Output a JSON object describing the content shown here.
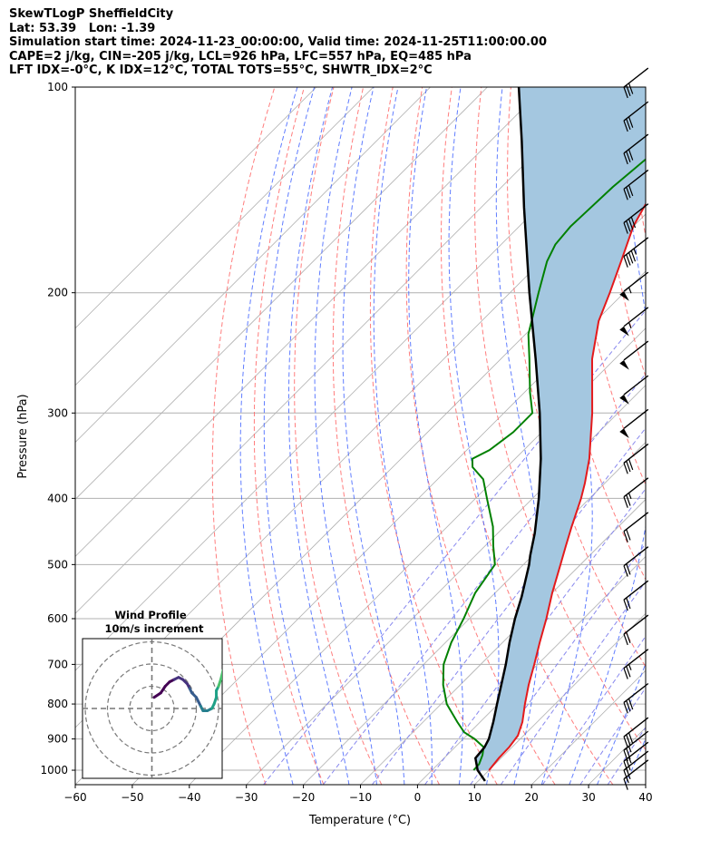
{
  "header": {
    "title": "SkewTLogP SheffieldCity",
    "location": "Lat: 53.39   Lon: -1.39",
    "times": "Simulation start time: 2024-11-23_00:00:00, Valid time: 2024-11-25T11:00:00.00",
    "params": "CAPE=2 j/kg, CIN=-205 j/kg, LCL=926 hPa, LFC=557 hPa, EQ=485 hPa",
    "indices": "LFT IDX=-0°C, K IDX=12°C, TOTAL TOTS=55°C, SHWTR_IDX=2°C"
  },
  "chart_data": {
    "type": "skew-t log-p",
    "xlabel": "Temperature (°C)",
    "ylabel": "Pressure (hPa)",
    "xlim": [
      -60,
      40
    ],
    "ylim": [
      1050,
      100
    ],
    "y_scale": "log",
    "x_ticks": [
      -60,
      -50,
      -40,
      -30,
      -20,
      -10,
      0,
      10,
      20,
      30,
      40
    ],
    "y_ticks": [
      100,
      200,
      300,
      400,
      500,
      600,
      700,
      800,
      900,
      1000
    ],
    "grid": true,
    "colors": {
      "temperature": "#e41a1c",
      "dewpoint": "#008000",
      "parcel": "#000000",
      "shading": "#a4c7e0",
      "dry_adiabats": "#ff6666",
      "moist_adiabats": "#4466ff",
      "mixing_ratio": "#8888ee",
      "isotherms": "#b0b0b0"
    },
    "temperature_profile": [
      [
        1000,
        10.0
      ],
      [
        960,
        9.6
      ],
      [
        925,
        9.5
      ],
      [
        890,
        9.0
      ],
      [
        850,
        7.4
      ],
      [
        800,
        4.7
      ],
      [
        750,
        2.0
      ],
      [
        700,
        -0.6
      ],
      [
        650,
        -3.5
      ],
      [
        600,
        -6.5
      ],
      [
        550,
        -10.0
      ],
      [
        500,
        -13.5
      ],
      [
        470,
        -15.8
      ],
      [
        440,
        -18.2
      ],
      [
        420,
        -19.8
      ],
      [
        400,
        -21.5
      ],
      [
        380,
        -23.5
      ],
      [
        350,
        -27.0
      ],
      [
        300,
        -34.5
      ],
      [
        250,
        -44.0
      ],
      [
        220,
        -49.5
      ],
      [
        200,
        -52.5
      ],
      [
        180,
        -56.0
      ],
      [
        160,
        -60.0
      ],
      [
        150,
        -61.5
      ],
      [
        130,
        -64.5
      ],
      [
        120,
        -66.5
      ],
      [
        110,
        -68.5
      ],
      [
        100,
        -70.5
      ]
    ],
    "dewpoint_profile": [
      [
        1000,
        7.3
      ],
      [
        980,
        7.2
      ],
      [
        950,
        6.2
      ],
      [
        925,
        5.0
      ],
      [
        900,
        2.0
      ],
      [
        880,
        -1.0
      ],
      [
        850,
        -4.0
      ],
      [
        800,
        -9.0
      ],
      [
        750,
        -13.0
      ],
      [
        700,
        -16.5
      ],
      [
        650,
        -19.0
      ],
      [
        600,
        -21.0
      ],
      [
        550,
        -23.5
      ],
      [
        500,
        -25.0
      ],
      [
        470,
        -28.5
      ],
      [
        440,
        -32.0
      ],
      [
        400,
        -38.0
      ],
      [
        375,
        -42.0
      ],
      [
        360,
        -46.0
      ],
      [
        350,
        -47.5
      ],
      [
        340,
        -46.0
      ],
      [
        320,
        -45.0
      ],
      [
        300,
        -45.0
      ],
      [
        280,
        -49.0
      ],
      [
        250,
        -55.0
      ],
      [
        230,
        -59.5
      ],
      [
        200,
        -65.0
      ],
      [
        180,
        -69.0
      ],
      [
        170,
        -70.5
      ],
      [
        160,
        -71.0
      ],
      [
        140,
        -70.5
      ],
      [
        120,
        -69.0
      ],
      [
        100,
        -68.0
      ]
    ],
    "parcel_profile": [
      [
        1037,
        11.2
      ],
      [
        1000,
        8.0
      ],
      [
        960,
        5.5
      ],
      [
        926,
        5.2
      ],
      [
        900,
        4.5
      ],
      [
        850,
        2.3
      ],
      [
        800,
        -0.2
      ],
      [
        750,
        -2.8
      ],
      [
        700,
        -5.6
      ],
      [
        650,
        -8.8
      ],
      [
        600,
        -12.0
      ],
      [
        557,
        -14.7
      ],
      [
        500,
        -19.0
      ],
      [
        485,
        -20.4
      ],
      [
        450,
        -23.5
      ],
      [
        400,
        -28.9
      ],
      [
        350,
        -35.5
      ],
      [
        300,
        -43.7
      ],
      [
        250,
        -53.9
      ],
      [
        200,
        -66.6
      ],
      [
        150,
        -82.5
      ],
      [
        120,
        -94.5
      ],
      [
        100,
        -104.5
      ]
    ],
    "wind_barbs": [
      {
        "p": 100,
        "speed_kt": 33
      },
      {
        "p": 112,
        "speed_kt": 32
      },
      {
        "p": 125,
        "speed_kt": 30
      },
      {
        "p": 141,
        "speed_kt": 31
      },
      {
        "p": 158,
        "speed_kt": 40
      },
      {
        "p": 177,
        "speed_kt": 45
      },
      {
        "p": 199,
        "speed_kt": 55
      },
      {
        "p": 224,
        "speed_kt": 58
      },
      {
        "p": 251,
        "speed_kt": 50
      },
      {
        "p": 282,
        "speed_kt": 50
      },
      {
        "p": 316,
        "speed_kt": 50
      },
      {
        "p": 355,
        "speed_kt": 30
      },
      {
        "p": 398,
        "speed_kt": 25
      },
      {
        "p": 447,
        "speed_kt": 20
      },
      {
        "p": 502,
        "speed_kt": 20
      },
      {
        "p": 563,
        "speed_kt": 20
      },
      {
        "p": 632,
        "speed_kt": 20
      },
      {
        "p": 709,
        "speed_kt": 25
      },
      {
        "p": 796,
        "speed_kt": 30
      },
      {
        "p": 893,
        "speed_kt": 30
      },
      {
        "p": 935,
        "speed_kt": 25
      },
      {
        "p": 970,
        "speed_kt": 25
      },
      {
        "p": 1000,
        "speed_kt": 20
      },
      {
        "p": 1030,
        "speed_kt": 15
      }
    ],
    "hodograph": {
      "title": "Wind Profile",
      "subtitle": "10m/s increment",
      "rings_ms": [
        10,
        20,
        30
      ],
      "trace_uv": [
        [
          1,
          5
        ],
        [
          4,
          7
        ],
        [
          6,
          10
        ],
        [
          8,
          12
        ],
        [
          10,
          13
        ],
        [
          12,
          14
        ],
        [
          14,
          13
        ],
        [
          16,
          11
        ],
        [
          17,
          9
        ],
        [
          18,
          7
        ],
        [
          20,
          5
        ],
        [
          21,
          3
        ],
        [
          22,
          1
        ],
        [
          23,
          -1
        ],
        [
          25,
          -1
        ],
        [
          27,
          0
        ],
        [
          28,
          2
        ],
        [
          29,
          5
        ],
        [
          29,
          8
        ],
        [
          30,
          10
        ],
        [
          31,
          13
        ],
        [
          32,
          17
        ],
        [
          33,
          20
        ],
        [
          34,
          23
        ],
        [
          35,
          25
        ],
        [
          37,
          28
        ],
        [
          39,
          29
        ],
        [
          41,
          30
        ],
        [
          43,
          32
        ],
        [
          44,
          35
        ],
        [
          45,
          38
        ]
      ]
    }
  }
}
